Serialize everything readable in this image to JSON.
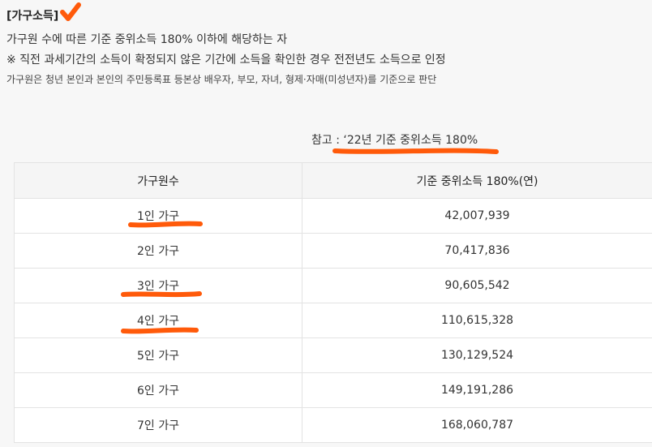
{
  "section": {
    "title": "[가구소득]"
  },
  "description": {
    "line1": "가구원 수에 따른 기준 중위소득 180% 이하에 해당하는 자",
    "line2": "※ 직전 과세기간의 소득이 확정되지 않은 기간에 소득을 확인한 경우 전전년도 소득으로 인정",
    "line3": "가구원은 청년 본인과 본인의 주민등록표 등본상 배우자, 부모, 자녀, 형제·자매(미성년자)를 기준으로 판단"
  },
  "reference_note": "참고 : ‘22년 기준 중위소득 180%",
  "table": {
    "headers": [
      "가구원수",
      "기준 중위소득 180%(연)"
    ],
    "rows": [
      {
        "household": "1인 가구",
        "income": "42,007,939"
      },
      {
        "household": "2인 가구",
        "income": "70,417,836"
      },
      {
        "household": "3인 가구",
        "income": "90,605,542"
      },
      {
        "household": "4인 가구",
        "income": "110,615,328"
      },
      {
        "household": "5인 가구",
        "income": "130,129,524"
      },
      {
        "household": "6인 가구",
        "income": "149,191,286"
      },
      {
        "household": "7인 가구",
        "income": "168,060,787"
      }
    ]
  },
  "annotation": {
    "color": "#ff5a0a",
    "check_mark_icon": "check-mark-icon",
    "underlined_rows": [
      "1인 가구",
      "3인 가구",
      "4인 가구"
    ]
  }
}
